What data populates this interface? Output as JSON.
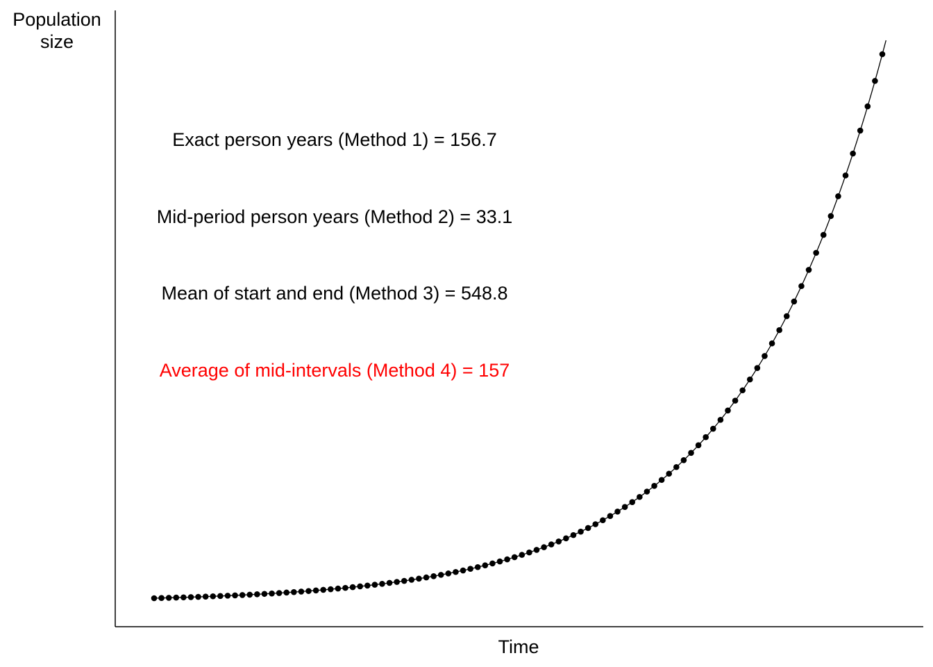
{
  "chart_data": {
    "type": "scatter",
    "title": "",
    "xlabel": "Time",
    "ylabel": [
      "Population",
      "size"
    ],
    "grid": false,
    "legend": "none",
    "axis_ticks": false,
    "curve": {
      "form": "exponential",
      "label": "",
      "note_values_estimated_relative_scale": true
    },
    "points": {
      "count": 100,
      "growth_per_step": 1.0513,
      "start_value": 1.0,
      "end_value": 140.0,
      "color": "#000000"
    },
    "annotations": [
      {
        "text": "Exact person years (Method 1) = 156.7",
        "color": "#000000"
      },
      {
        "text": "Mid-period person years (Method 2) = 33.1",
        "color": "#000000"
      },
      {
        "text": "Mean of start and end (Method 3) = 548.8",
        "color": "#000000"
      },
      {
        "text": "Average of mid-intervals (Method 4) = 157",
        "color": "#ff0000"
      }
    ]
  }
}
